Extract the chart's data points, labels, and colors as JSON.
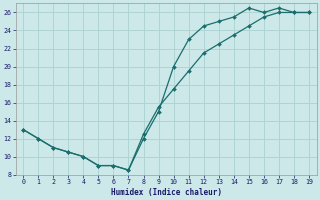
{
  "xlabel": "Humidex (Indice chaleur)",
  "bg_color": "#cce8e8",
  "grid_color": "#aed4d4",
  "line_color": "#1a6e6e",
  "curve1_x": [
    0,
    1,
    2,
    3,
    4,
    5,
    6,
    7,
    8,
    9,
    10,
    11,
    12,
    13,
    14,
    15,
    16,
    17,
    18,
    19
  ],
  "curve1_y": [
    13.0,
    12.0,
    11.0,
    10.5,
    10.0,
    9.0,
    9.0,
    8.5,
    12.0,
    15.0,
    20.0,
    23.0,
    24.5,
    25.0,
    25.5,
    26.5,
    26.0,
    26.5,
    26.0,
    26.0
  ],
  "curve2_x": [
    0,
    1,
    2,
    3,
    4,
    5,
    6,
    7,
    8,
    9,
    10,
    11,
    12,
    13,
    14,
    15,
    16,
    17,
    18,
    19
  ],
  "curve2_y": [
    13.0,
    12.0,
    11.0,
    10.5,
    10.0,
    9.0,
    9.0,
    8.5,
    12.5,
    15.5,
    17.5,
    19.5,
    21.5,
    22.5,
    23.5,
    24.5,
    25.5,
    26.0,
    26.0,
    26.0
  ],
  "ylim": [
    8,
    27
  ],
  "xlim": [
    -0.5,
    19.5
  ],
  "yticks": [
    8,
    10,
    12,
    14,
    16,
    18,
    20,
    22,
    24,
    26
  ],
  "xticks": [
    0,
    1,
    2,
    3,
    4,
    5,
    6,
    7,
    8,
    9,
    10,
    11,
    12,
    13,
    14,
    15,
    16,
    17,
    18,
    19
  ],
  "xlabel_color": "#1a1a6a",
  "tick_color": "#1a1a6a"
}
